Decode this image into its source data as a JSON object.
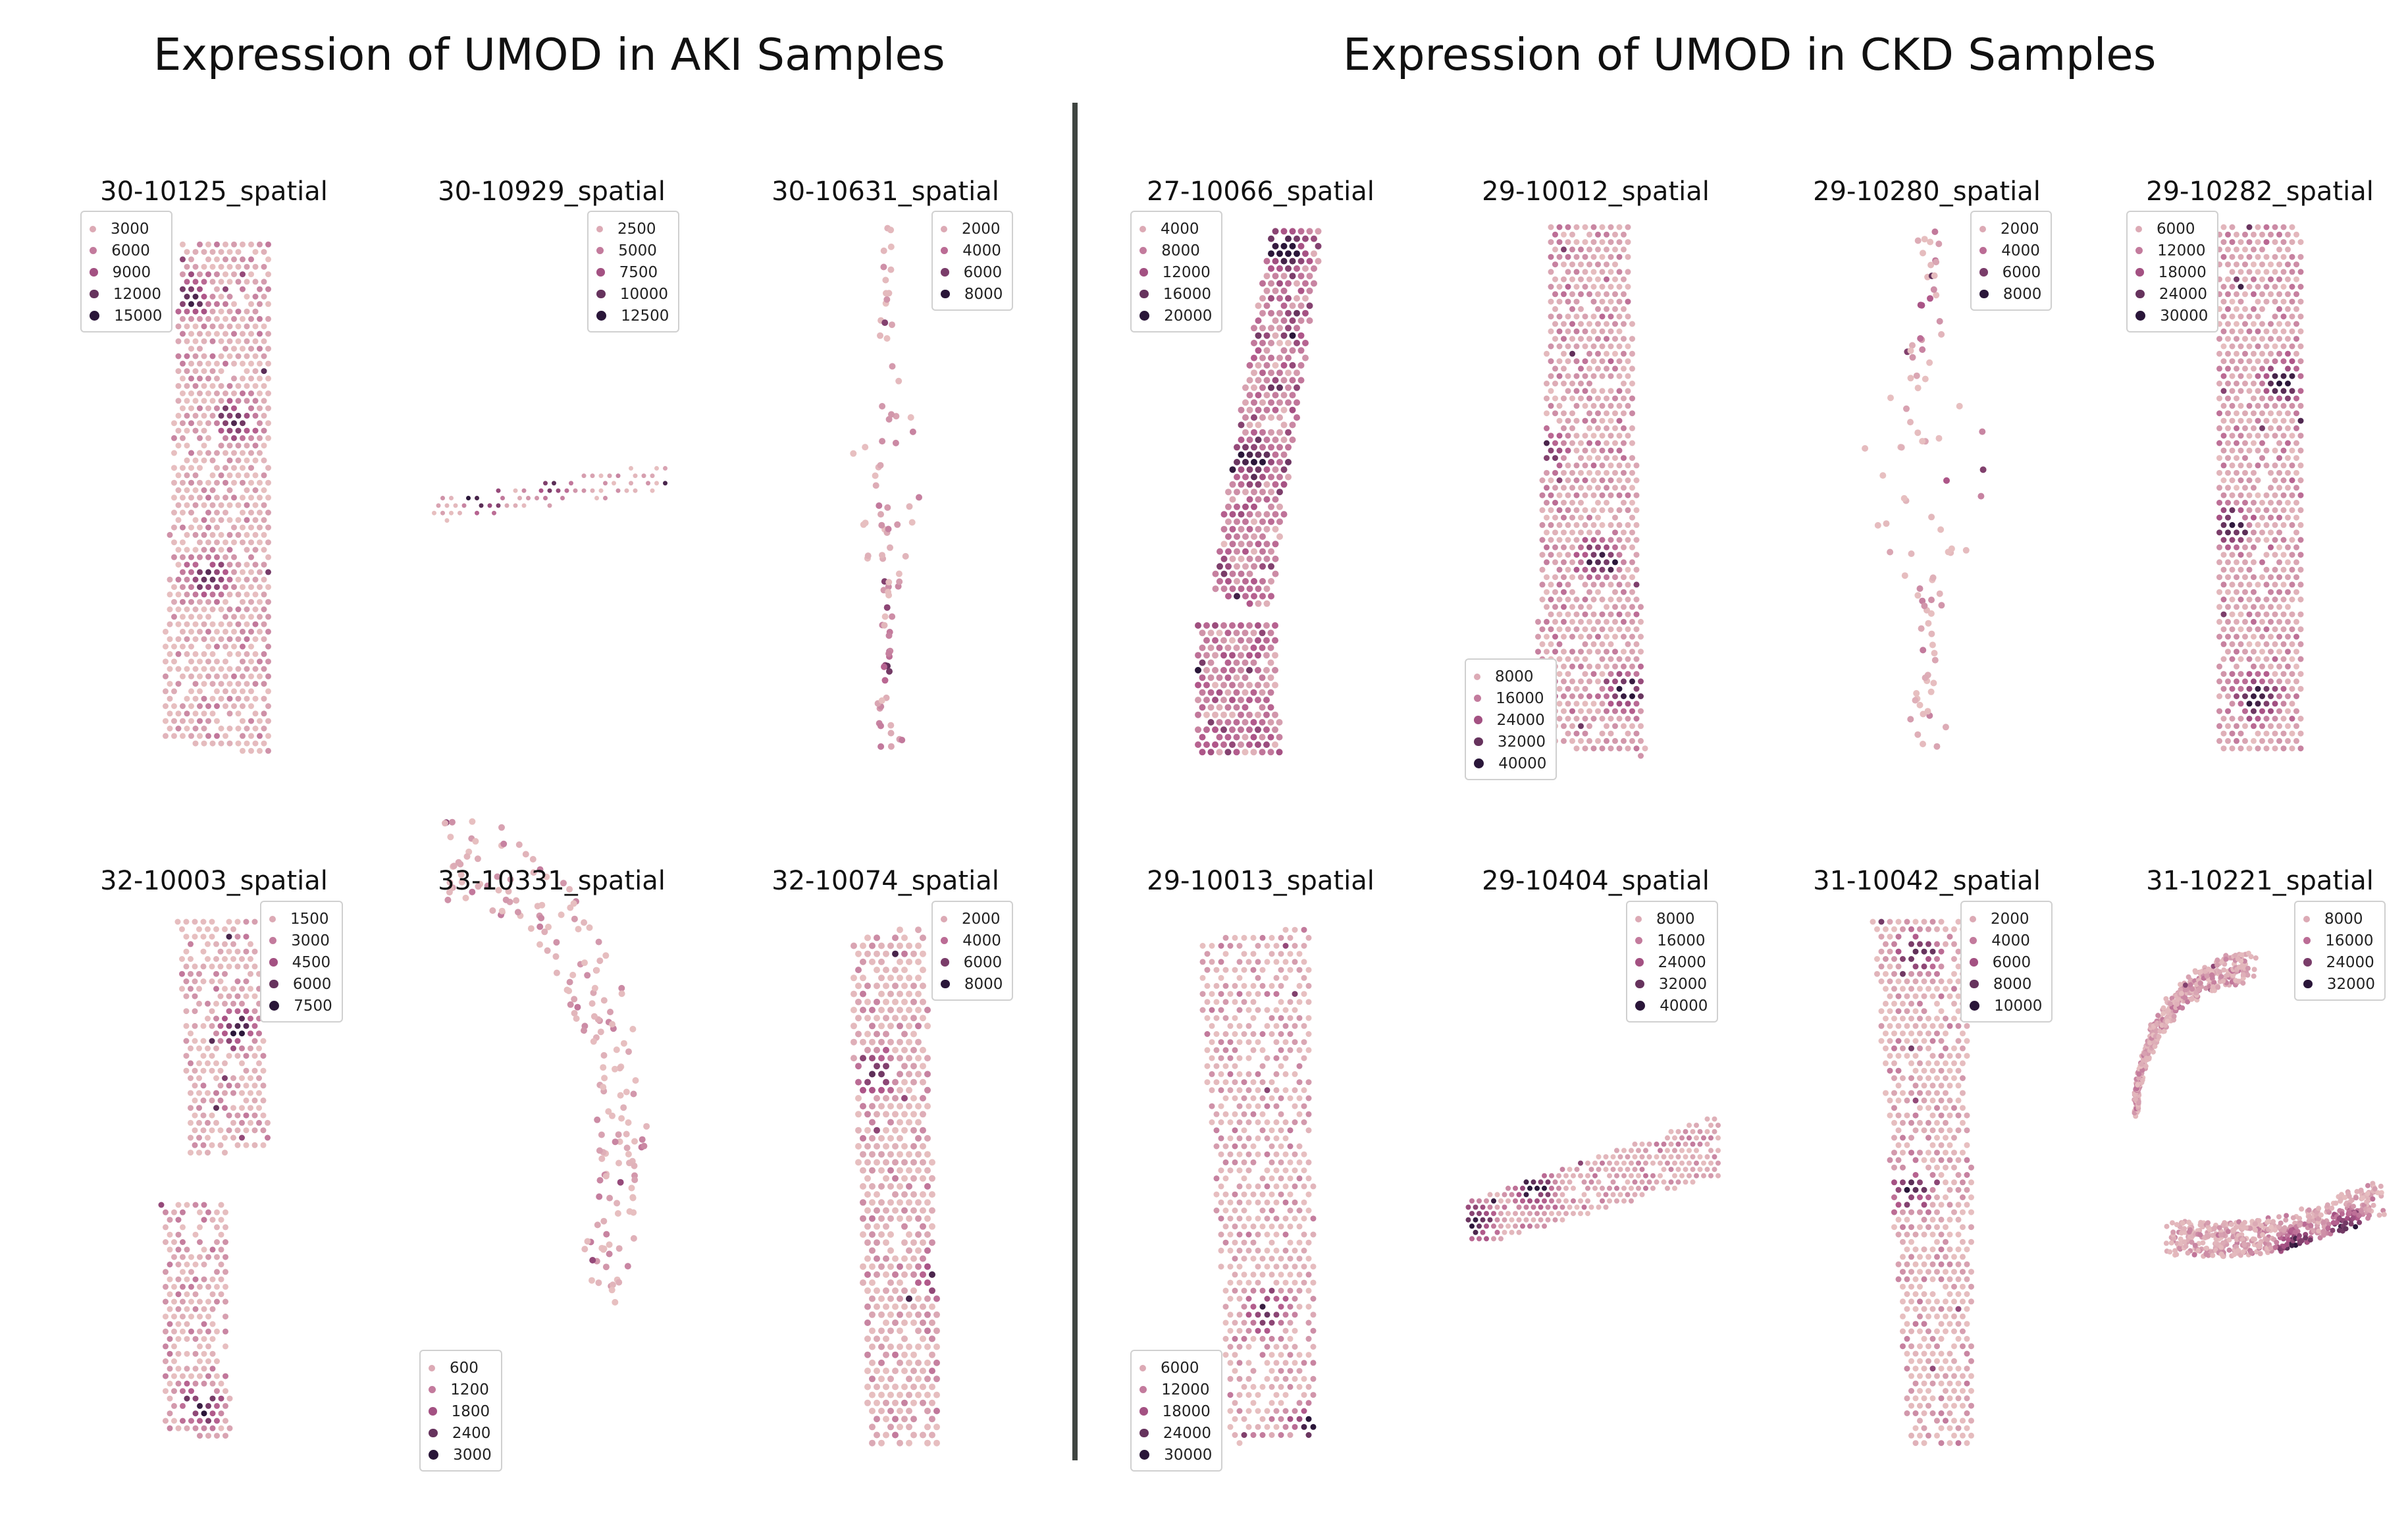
{
  "figure": {
    "aki_title": "Expression of UMOD in AKI Samples",
    "ckd_title": "Expression of UMOD in CKD Samples"
  },
  "colors": {
    "palette_low": "#e7bfc0",
    "palette_mid": "#b0578a",
    "palette_high": "#2a1639",
    "divider": "#3f4541"
  },
  "chart_data": [
    {
      "type": "scatter",
      "title": "30-10125_spatial",
      "group": "AKI",
      "shape": "strip-vertical",
      "legend": {
        "position": "top-left",
        "values": [
          3000,
          6000,
          9000,
          12000,
          15000
        ]
      },
      "vmax": 16000
    },
    {
      "type": "scatter",
      "title": "30-10929_spatial",
      "group": "AKI",
      "shape": "strip-horizontal",
      "legend": {
        "position": "top-right",
        "values": [
          2500,
          5000,
          7500,
          10000,
          12500
        ]
      },
      "vmax": 13000
    },
    {
      "type": "scatter",
      "title": "30-10631_spatial",
      "group": "AKI",
      "shape": "sparse-vertical",
      "legend": {
        "position": "top-right",
        "values": [
          2000,
          4000,
          6000,
          8000
        ]
      },
      "vmax": 8500
    },
    {
      "type": "scatter",
      "title": "32-10003_spatial",
      "group": "AKI",
      "shape": "two-fragments",
      "legend": {
        "position": "top-right",
        "values": [
          1500,
          3000,
          4500,
          6000,
          7500
        ]
      },
      "vmax": 8000
    },
    {
      "type": "scatter",
      "title": "33-10331_spatial",
      "group": "AKI",
      "shape": "arc",
      "legend": {
        "position": "bottom-left",
        "values": [
          600,
          1200,
          1800,
          2400,
          3000
        ]
      },
      "vmax": 3100
    },
    {
      "type": "scatter",
      "title": "32-10074_spatial",
      "group": "AKI",
      "shape": "column",
      "legend": {
        "position": "top-right",
        "values": [
          2000,
          4000,
          6000,
          8000
        ]
      },
      "vmax": 8500
    },
    {
      "type": "scatter",
      "title": "27-10066_spatial",
      "group": "CKD",
      "shape": "tilted-strip",
      "legend": {
        "position": "top-left",
        "values": [
          4000,
          8000,
          12000,
          16000,
          20000
        ]
      },
      "vmax": 21000
    },
    {
      "type": "scatter",
      "title": "29-10012_spatial",
      "group": "CKD",
      "shape": "strip-vertical",
      "legend": {
        "position": "bottom-left",
        "values": [
          8000,
          16000,
          24000,
          32000,
          40000
        ]
      },
      "vmax": 41000
    },
    {
      "type": "scatter",
      "title": "29-10280_spatial",
      "group": "CKD",
      "shape": "sparse-vertical",
      "legend": {
        "position": "top-right",
        "values": [
          2000,
          4000,
          6000,
          8000
        ]
      },
      "vmax": 8500
    },
    {
      "type": "scatter",
      "title": "29-10282_spatial",
      "group": "CKD",
      "shape": "strip-vertical",
      "legend": {
        "position": "top-left",
        "values": [
          6000,
          12000,
          18000,
          24000,
          30000
        ]
      },
      "vmax": 31000
    },
    {
      "type": "scatter",
      "title": "29-10013_spatial",
      "group": "CKD",
      "shape": "column",
      "legend": {
        "position": "bottom-left",
        "values": [
          6000,
          12000,
          18000,
          24000,
          30000
        ]
      },
      "vmax": 31000
    },
    {
      "type": "scatter",
      "title": "29-10404_spatial",
      "group": "CKD",
      "shape": "diagonal-band",
      "legend": {
        "position": "top-right",
        "values": [
          8000,
          16000,
          24000,
          32000,
          40000
        ]
      },
      "vmax": 41000
    },
    {
      "type": "scatter",
      "title": "31-10042_spatial",
      "group": "CKD",
      "shape": "column",
      "legend": {
        "position": "top-right",
        "values": [
          2000,
          4000,
          6000,
          8000,
          10000
        ]
      },
      "vmax": 10500
    },
    {
      "type": "scatter",
      "title": "31-10221_spatial",
      "group": "CKD",
      "shape": "hook",
      "legend": {
        "position": "top-right",
        "values": [
          8000,
          16000,
          24000,
          32000
        ]
      },
      "vmax": 33000
    }
  ]
}
